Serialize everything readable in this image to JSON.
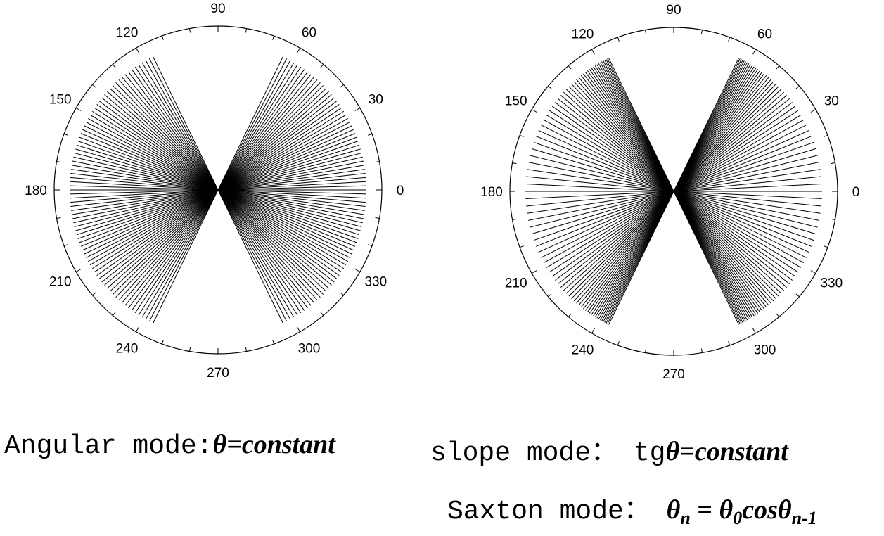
{
  "chart_data": [
    {
      "type": "polar",
      "mode": "Angular mode",
      "angle_ticks": [
        "0",
        "30",
        "60",
        "90",
        "120",
        "150",
        "180",
        "210",
        "240",
        "270",
        "300",
        "330"
      ],
      "angle_step_deg": 1.6,
      "beam_half_width_deg": 64,
      "num_lines_per_side": 81,
      "grid": false,
      "line_color": "#000000"
    },
    {
      "type": "polar",
      "mode": "slope mode",
      "angle_ticks": [
        "0",
        "30",
        "60",
        "90",
        "120",
        "150",
        "180",
        "210",
        "240",
        "270",
        "300",
        "330"
      ],
      "slope_step": 0.05,
      "beam_half_width_deg": 64,
      "num_lines_per_side": 83,
      "grid": false,
      "line_color": "#000000"
    }
  ],
  "captions": {
    "angular": {
      "text": "Angular mode:",
      "formula": "θ=constant"
    },
    "slope": {
      "text": "slope mode： tg",
      "formula": "θ=constant"
    },
    "saxton": {
      "text": "Saxton mode： ",
      "theta": "θ",
      "sub_n": "n",
      "equals": " = ",
      "theta0": "θ",
      "sub_0": "0",
      "cos": "cos",
      "theta_prev": "θ",
      "sub_prev": "n-1"
    }
  }
}
